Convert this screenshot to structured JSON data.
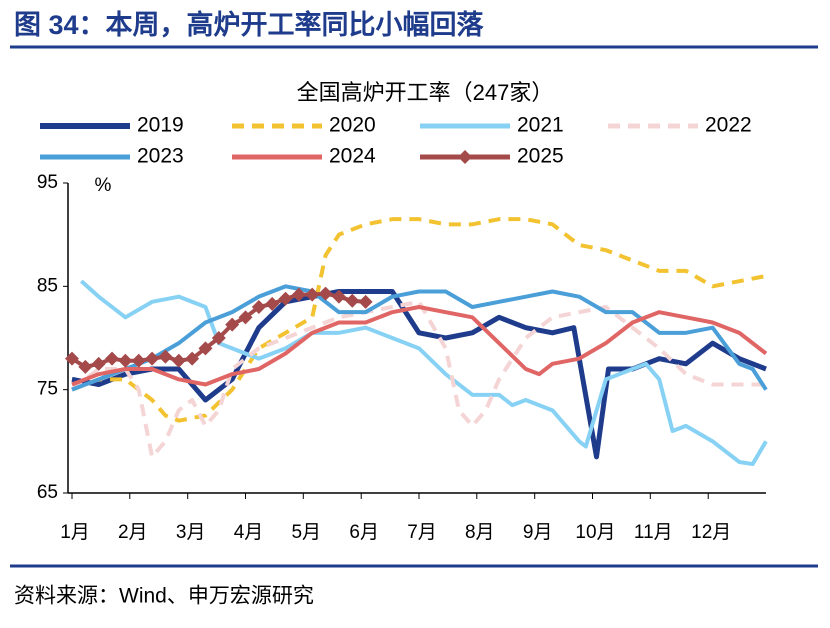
{
  "header": {
    "title": "图 34：本周，高炉开工率同比小幅回落",
    "source": "资料来源：Wind、申万宏源研究"
  },
  "chart_data": {
    "type": "line",
    "title": "全国高炉开工率（247家）",
    "y_unit": "%",
    "xlim": [
      0,
      52
    ],
    "ylim": [
      65,
      95
    ],
    "yticks": [
      65,
      75,
      85,
      95
    ],
    "xticks": [
      {
        "value": 0,
        "label": "1月"
      },
      {
        "value": 4.33,
        "label": "2月"
      },
      {
        "value": 8.67,
        "label": "3月"
      },
      {
        "value": 13,
        "label": "4月"
      },
      {
        "value": 17.33,
        "label": "5月"
      },
      {
        "value": 21.67,
        "label": "6月"
      },
      {
        "value": 26,
        "label": "7月"
      },
      {
        "value": 30.33,
        "label": "8月"
      },
      {
        "value": 34.67,
        "label": "9月"
      },
      {
        "value": 39,
        "label": "10月"
      },
      {
        "value": 43.33,
        "label": "11月"
      },
      {
        "value": 47.67,
        "label": "12月"
      }
    ],
    "series": [
      {
        "name": "2019",
        "color": "#1f3c8c",
        "width": 5,
        "dash": false,
        "x": [
          0,
          2,
          4,
          6,
          8,
          10,
          12,
          14,
          16,
          18,
          20,
          22,
          24,
          26,
          28,
          30,
          32,
          34,
          36,
          37.6,
          39.3,
          40.2,
          42,
          44,
          46,
          48,
          50,
          52
        ],
        "values": [
          76,
          75.5,
          76.5,
          77,
          77,
          74,
          76,
          81,
          83.5,
          84,
          84.5,
          84.5,
          84.5,
          80.5,
          80,
          80.5,
          82,
          81,
          80.5,
          81,
          68.5,
          77,
          77,
          78,
          77.5,
          79.5,
          78,
          77
        ]
      },
      {
        "name": "2020",
        "color": "#f2c230",
        "width": 4,
        "dash": true,
        "x": [
          0,
          2,
          4,
          6,
          7,
          8,
          10,
          12,
          14,
          16,
          18,
          19,
          20,
          22,
          24,
          26,
          28,
          30,
          32,
          34,
          36,
          38,
          40,
          42,
          44,
          46,
          48,
          50,
          52
        ],
        "values": [
          75,
          76,
          76,
          74,
          72.5,
          72,
          72.5,
          75,
          79,
          80.5,
          82,
          88,
          90,
          91,
          91.5,
          91.5,
          91,
          91,
          91.5,
          91.5,
          91,
          89,
          88.5,
          87.5,
          86.5,
          86.5,
          85,
          85.5,
          86
        ]
      },
      {
        "name": "2021",
        "color": "#87d2f4",
        "width": 4,
        "dash": false,
        "x": [
          0.7,
          2,
          4,
          6,
          8,
          10,
          11,
          12,
          14,
          16,
          18,
          20,
          22,
          24,
          26,
          28,
          30,
          32,
          33,
          34,
          36,
          38,
          38.5,
          40,
          42,
          43,
          44,
          45,
          46,
          48,
          50,
          51,
          52
        ],
        "values": [
          85.5,
          84,
          82,
          83.5,
          84,
          83,
          79.5,
          79,
          78,
          79,
          80.5,
          80.5,
          81,
          80,
          79,
          76.5,
          74.5,
          74.5,
          73.5,
          74,
          73,
          70,
          69.5,
          76,
          77,
          77.5,
          76,
          71,
          71.5,
          70,
          68,
          67.8,
          70
        ]
      },
      {
        "name": "2022",
        "color": "#f4d4d4",
        "width": 4,
        "dash": true,
        "x": [
          0,
          2,
          4,
          5,
          6,
          7,
          8,
          9,
          10,
          11,
          12,
          14,
          16,
          18,
          20,
          22,
          24,
          26,
          28,
          29,
          30,
          31,
          32,
          34,
          36,
          38,
          40,
          42,
          44,
          46,
          48,
          50,
          52
        ],
        "values": [
          75,
          77,
          77,
          75,
          68.5,
          70,
          73,
          74,
          71.5,
          73,
          77,
          79,
          80,
          81,
          82,
          82.5,
          83,
          83.5,
          79,
          73,
          71.5,
          73,
          76,
          80,
          82,
          82.5,
          83,
          81,
          79,
          76.5,
          75.5,
          75.5,
          75.5
        ]
      },
      {
        "name": "2023",
        "color": "#4a9fd8",
        "width": 4,
        "dash": false,
        "x": [
          0,
          2,
          4,
          6,
          8,
          10,
          12,
          14,
          16,
          18,
          20,
          22,
          24,
          26,
          28,
          30,
          32,
          34,
          36,
          38,
          40,
          42,
          44,
          46,
          48,
          50,
          51,
          52
        ],
        "values": [
          75,
          76,
          77,
          78,
          79.5,
          81.5,
          82.5,
          84,
          85,
          84.5,
          82.5,
          82.5,
          84,
          84.5,
          84.5,
          83,
          83.5,
          84,
          84.5,
          84,
          82.5,
          82.5,
          80.5,
          80.5,
          81,
          77.5,
          77,
          75
        ]
      },
      {
        "name": "2024",
        "color": "#e06565",
        "width": 4,
        "dash": false,
        "x": [
          0,
          2,
          4,
          6,
          8,
          10,
          12,
          14,
          16,
          18,
          20,
          22,
          24,
          26,
          28,
          30,
          32,
          34,
          35,
          36,
          38,
          40,
          42,
          44,
          46,
          48,
          50,
          52
        ],
        "values": [
          75.5,
          76.5,
          77,
          77,
          76,
          75.5,
          76.5,
          77,
          78.5,
          80.5,
          81.5,
          81.5,
          82.5,
          83,
          82.5,
          82,
          79.5,
          77,
          76.5,
          77.5,
          78,
          79.5,
          81.5,
          82.5,
          82,
          81.5,
          80.5,
          78.5
        ]
      },
      {
        "name": "2025",
        "color": "#a44a4a",
        "width": 4,
        "dash": false,
        "marker": "diamond",
        "x": [
          0,
          1,
          2,
          3,
          4,
          5,
          6,
          7,
          8,
          9,
          10,
          11,
          12,
          13,
          14,
          15,
          16,
          17,
          18,
          19,
          20,
          21,
          22
        ],
        "values": [
          78,
          77.2,
          77.5,
          78,
          77.8,
          77.8,
          78,
          78.2,
          77.8,
          78,
          79,
          80,
          81.3,
          82,
          83,
          83.3,
          83.8,
          84.2,
          84.2,
          84.3,
          84,
          83.6,
          83.5
        ]
      }
    ]
  }
}
